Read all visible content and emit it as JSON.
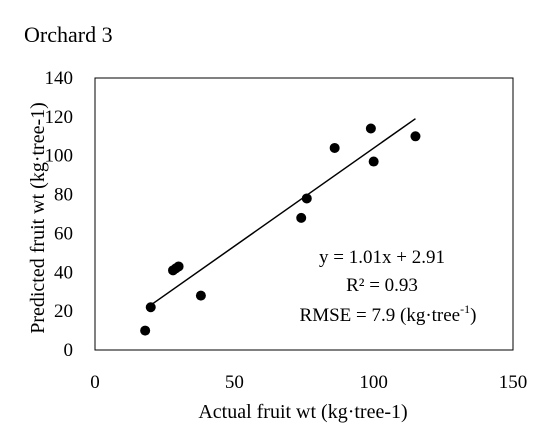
{
  "chart_data": {
    "type": "scatter",
    "title": "Orchard 3",
    "xlabel": "Actual fruit wt (kg·tree-1)",
    "ylabel": "Predicted fruit wt (kg·tree-1)",
    "xlim": [
      0,
      150
    ],
    "ylim": [
      0,
      140
    ],
    "xticks": [
      0,
      50,
      100,
      150
    ],
    "yticks": [
      0,
      20,
      40,
      60,
      80,
      100,
      120,
      140
    ],
    "grid": false,
    "series": [
      {
        "points": [
          {
            "x": 18,
            "y": 10
          },
          {
            "x": 20,
            "y": 22
          },
          {
            "x": 28,
            "y": 41
          },
          {
            "x": 29,
            "y": 42
          },
          {
            "x": 30,
            "y": 43
          },
          {
            "x": 38,
            "y": 28
          },
          {
            "x": 74,
            "y": 68
          },
          {
            "x": 76,
            "y": 78
          },
          {
            "x": 86,
            "y": 104
          },
          {
            "x": 99,
            "y": 114
          },
          {
            "x": 100,
            "y": 97
          },
          {
            "x": 115,
            "y": 110
          }
        ]
      }
    ],
    "trendline": {
      "slope": 1.01,
      "intercept": 2.91,
      "x_range": [
        19,
        115
      ]
    },
    "annotations": {
      "equation": "y = 1.01x + 2.91",
      "r2": "R² = 0.93",
      "rmse_prefix": "RMSE = 7.9 (kg·tree",
      "rmse_sup": "-1",
      "rmse_suffix": ")"
    }
  }
}
